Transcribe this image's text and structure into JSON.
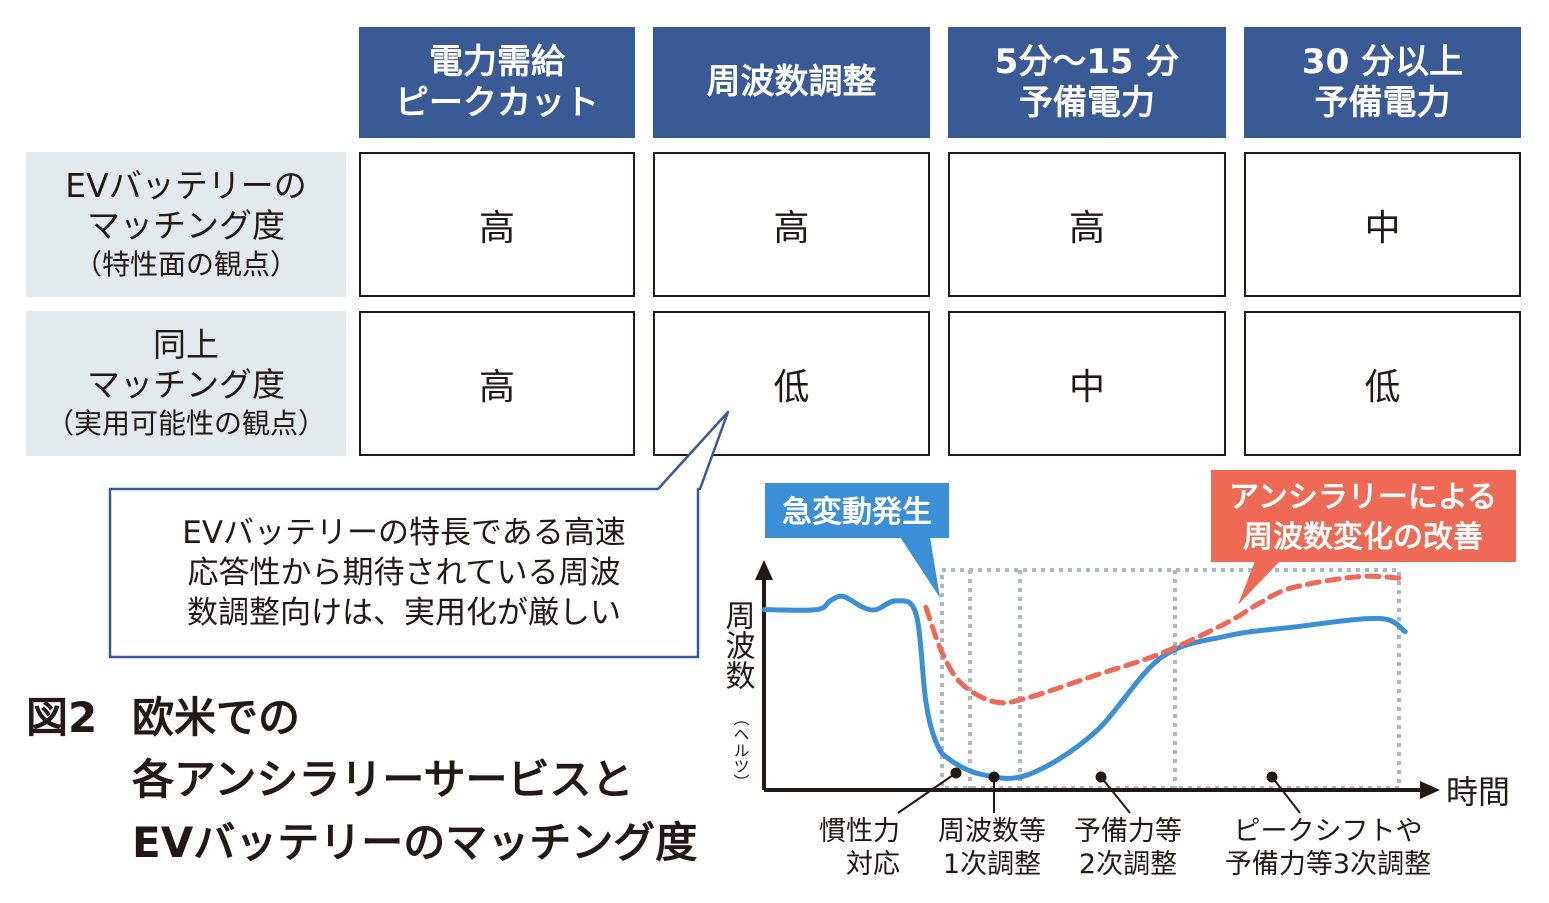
{
  "table": {
    "columns": [
      "電力需給\nピークカット",
      "周波数調整",
      "5分〜15 分\n予備電力",
      "30 分以上\n予備電力"
    ],
    "rows": [
      {
        "label": "EVバッテリーの\nマッチング度",
        "sub": "（特性面の観点）",
        "values": [
          "高",
          "高",
          "高",
          "中"
        ]
      },
      {
        "label": "同上\nマッチング度",
        "sub": "（実用可能性の観点）",
        "values": [
          "高",
          "低",
          "中",
          "低"
        ]
      }
    ]
  },
  "callout": {
    "text": "EVバッテリーの特長である高速\n応答性から期待されている周波\n数調整向けは、実用化が厳しい"
  },
  "caption": {
    "number": "図2",
    "line1": "欧米での",
    "line2": "各アンシラリーサービスと",
    "line3": "EVバッテリーのマッチング度"
  },
  "chart": {
    "event_label": "急変動発生",
    "improvement_label_line1": "アンシラリーによる",
    "improvement_label_line2": "周波数変化の改善",
    "y_axis_label": "周波数",
    "y_axis_unit": "（ヘルツ）",
    "x_axis_label": "時間",
    "phases": [
      {
        "line1": "慣性力",
        "line2": "対応"
      },
      {
        "line1": "周波数等",
        "line2": "1次調整"
      },
      {
        "line1": "予備力等",
        "line2": "2次調整"
      },
      {
        "line1": "ピークシフトや",
        "line2": "予備力等3次調整"
      }
    ]
  },
  "colors": {
    "header_bg": "#3a5a95",
    "label_bg": "#e2eaee",
    "blue_line": "#3a8fd6",
    "red_line": "#ee6a55",
    "event_label_bg": "#3a8fd6",
    "improvement_label_bg": "#ee6a55",
    "dotted_box": "#aab8c4"
  },
  "chart_data": {
    "type": "line",
    "xlabel": "時間",
    "ylabel": "周波数（ヘルツ）",
    "series": [
      {
        "x": [
          0.0,
          0.08,
          0.1,
          0.12,
          0.15,
          0.17,
          0.2,
          0.23,
          0.245,
          0.26,
          0.28,
          0.33,
          0.4,
          0.5,
          0.6,
          0.7,
          0.8,
          0.93,
          0.97
        ],
        "y": [
          0.82,
          0.82,
          0.86,
          0.88,
          0.83,
          0.82,
          0.86,
          0.8,
          0.4,
          0.22,
          0.14,
          0.07,
          0.07,
          0.26,
          0.6,
          0.7,
          0.74,
          0.78,
          0.72
        ]
      },
      {
        "x": [
          0.245,
          0.27,
          0.3,
          0.35,
          0.4,
          0.5,
          0.6,
          0.7,
          0.75,
          0.8,
          0.9,
          0.97
        ],
        "y": [
          0.83,
          0.62,
          0.48,
          0.4,
          0.42,
          0.52,
          0.62,
          0.76,
          0.85,
          0.92,
          0.97,
          0.96
        ]
      }
    ]
  }
}
